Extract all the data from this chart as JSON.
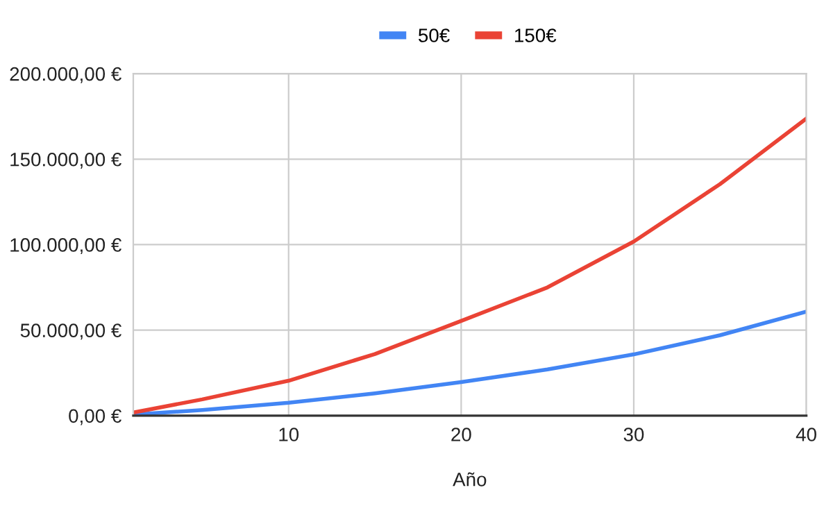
{
  "chart_data": {
    "type": "line",
    "xlabel": "Año",
    "legend": "top",
    "grid": true,
    "marker": "none",
    "line_style": "solid",
    "xlim": [
      1,
      40
    ],
    "xticks": [
      10,
      20,
      30,
      40
    ],
    "ylim": [
      0,
      200000
    ],
    "yticks": [
      {
        "value": 0,
        "label": "0,00 €"
      },
      {
        "value": 50000,
        "label": "50.000,00 €"
      },
      {
        "value": 100000,
        "label": "100.000,00 €"
      },
      {
        "value": 150000,
        "label": "150.000,00 €"
      },
      {
        "value": 200000,
        "label": "200.000,00 €"
      }
    ],
    "x": [
      1,
      5,
      10,
      15,
      20,
      25,
      30,
      35,
      40
    ],
    "series": [
      {
        "name": "50€",
        "color": "#4285f4",
        "values": [
          600,
          3300,
          7500,
          13000,
          19600,
          27000,
          35800,
          47000,
          60800
        ]
      },
      {
        "name": "150€",
        "color": "#ea4335",
        "values": [
          1800,
          9500,
          20400,
          36000,
          55400,
          75000,
          101800,
          135400,
          173700
        ]
      }
    ]
  }
}
